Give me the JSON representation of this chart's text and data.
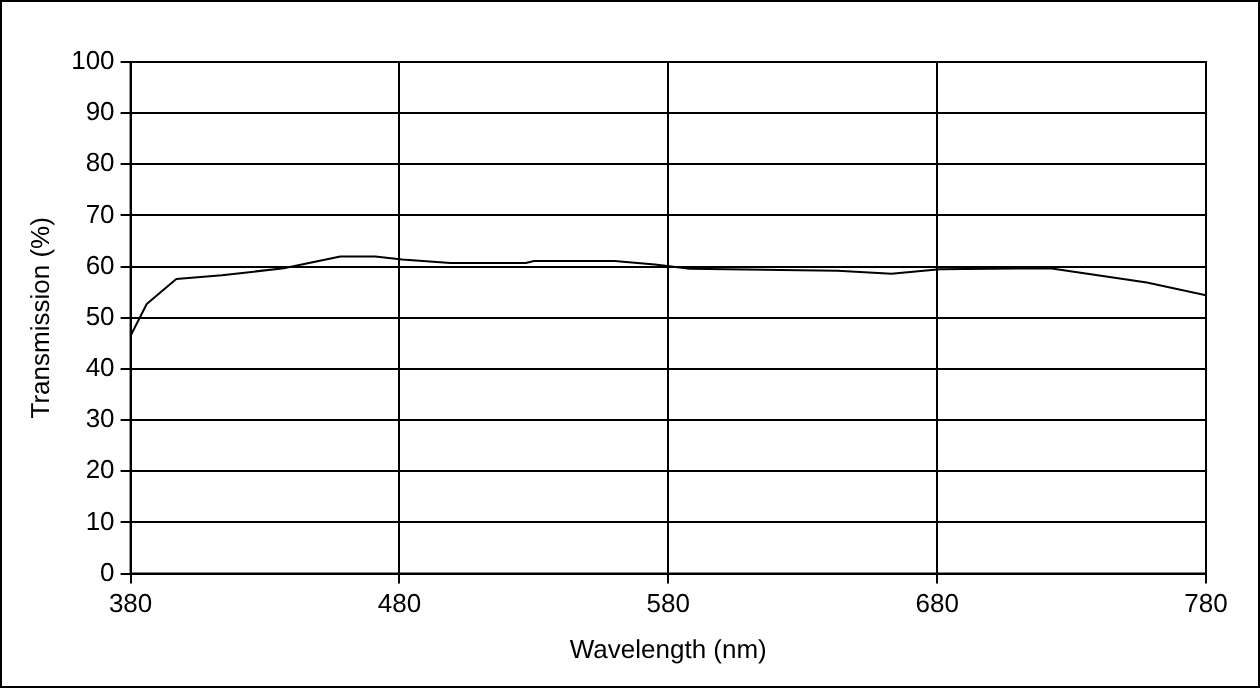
{
  "chart_data": {
    "type": "line",
    "xlabel": "Wavelength (nm)",
    "ylabel": "Transmission (%)",
    "x": [
      380,
      386,
      397,
      414,
      437,
      458,
      471,
      481,
      499,
      527,
      530,
      560,
      575,
      588,
      643,
      663,
      681,
      722,
      758,
      780
    ],
    "series": [
      {
        "color": "#000000",
        "values": [
          46.5,
          52.7,
          57.6,
          58.3,
          59.7,
          62,
          62,
          61.4,
          60.7,
          60.7,
          61.1,
          61.1,
          60.4,
          59.6,
          59.2,
          58.6,
          59.5,
          59.7,
          56.9,
          54.4
        ]
      }
    ],
    "xlim": [
      380,
      780
    ],
    "xticks": [
      380,
      480,
      580,
      680,
      780
    ],
    "ylim": [
      0,
      100
    ],
    "yticks": [
      0,
      10,
      20,
      30,
      40,
      50,
      60,
      70,
      80,
      90,
      100
    ],
    "grid": true,
    "legend": false,
    "marker": "none",
    "line_style": "solid"
  }
}
